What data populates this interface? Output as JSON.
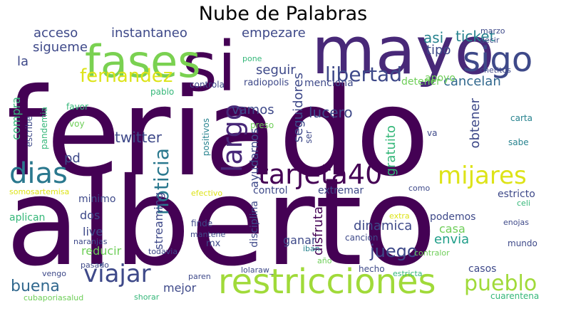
{
  "title": "Nube de Palabras",
  "palette": {
    "dark_purple": "#440154",
    "purple": "#482878",
    "indigo": "#3e4989",
    "blue": "#31688e",
    "teal": "#26828e",
    "green_teal": "#1f9e89",
    "green": "#35b779",
    "light_green": "#6ece58",
    "yellow_green": "#b5de2b",
    "yellow": "#dde318"
  },
  "words": [
    {
      "text": "feriado",
      "color": "#440154",
      "vertical": false
    },
    {
      "text": "alberto",
      "color": "#440154",
      "vertical": false
    },
    {
      "text": "mayo",
      "color": "#482878",
      "vertical": false
    },
    {
      "text": "si",
      "color": "#440154",
      "vertical": false
    },
    {
      "text": "fases",
      "color": "#7ad151",
      "vertical": false
    },
    {
      "text": "sigo",
      "color": "#3e4989",
      "vertical": false
    },
    {
      "text": "restricciones",
      "color": "#a0da39",
      "vertical": false
    },
    {
      "text": "tarjeta40",
      "color": "#440154",
      "vertical": false
    },
    {
      "text": "dias",
      "color": "#2a788e",
      "vertical": false
    },
    {
      "text": "viajar",
      "color": "#3e4989",
      "vertical": false
    },
    {
      "text": "mijares",
      "color": "#dde318",
      "vertical": false
    },
    {
      "text": "pueblo",
      "color": "#a0da39",
      "vertical": false
    },
    {
      "text": "largo",
      "color": "#482878",
      "vertical": true
    },
    {
      "text": "libertad",
      "color": "#3e4989",
      "vertical": false
    },
    {
      "text": "fernandez",
      "color": "#dde318",
      "vertical": false
    },
    {
      "text": "noticia",
      "color": "#2a788e",
      "vertical": true
    },
    {
      "text": "juego",
      "color": "#3e4989",
      "vertical": false
    },
    {
      "text": "buena",
      "color": "#31688e",
      "vertical": false
    },
    {
      "text": "acceso",
      "color": "#3e4989",
      "vertical": false
    },
    {
      "text": "instantaneo",
      "color": "#3e4989",
      "vertical": false
    },
    {
      "text": "sigueme",
      "color": "#3e4989",
      "vertical": false
    },
    {
      "text": "la",
      "color": "#3e4989",
      "vertical": false
    },
    {
      "text": "asi",
      "color": "#26828e",
      "vertical": false
    },
    {
      "text": "ticket",
      "color": "#26828e",
      "vertical": false
    },
    {
      "text": "tipo",
      "color": "#3e4989",
      "vertical": false
    },
    {
      "text": "empezare",
      "color": "#3e4989",
      "vertical": false
    },
    {
      "text": "seguir",
      "color": "#3e4989",
      "vertical": false
    },
    {
      "text": "cancelan",
      "color": "#31688e",
      "vertical": false
    },
    {
      "text": "twitter",
      "color": "#3e4989",
      "vertical": false
    },
    {
      "text": "vamos",
      "color": "#3e4989",
      "vertical": false
    },
    {
      "text": "lucero",
      "color": "#3e4989",
      "vertical": false
    },
    {
      "text": "seguidores",
      "color": "#3e4989",
      "vertical": true
    },
    {
      "text": "gratuito",
      "color": "#35b779",
      "vertical": true
    },
    {
      "text": "obtener",
      "color": "#3e4989",
      "vertical": true
    },
    {
      "text": "compra",
      "color": "#35b779",
      "vertical": true
    },
    {
      "text": "pd",
      "color": "#3e4989",
      "vertical": false
    },
    {
      "text": "dinamica",
      "color": "#3e4989",
      "vertical": false
    },
    {
      "text": "casa",
      "color": "#6ece58",
      "vertical": false
    },
    {
      "text": "envia",
      "color": "#1f9e89",
      "vertical": false
    },
    {
      "text": "streaming",
      "color": "#3e4989",
      "vertical": true
    },
    {
      "text": "ayudarnos",
      "color": "#3e4989",
      "vertical": true
    },
    {
      "text": "disfruta",
      "color": "#440154",
      "vertical": true
    },
    {
      "text": "disciplina",
      "color": "#3e4989",
      "vertical": true
    },
    {
      "text": "minimo",
      "color": "#3e4989",
      "vertical": false
    },
    {
      "text": "dos",
      "color": "#3e4989",
      "vertical": false
    },
    {
      "text": "live",
      "color": "#3e4989",
      "vertical": false
    },
    {
      "text": "reducir",
      "color": "#6ece58",
      "vertical": false
    },
    {
      "text": "aplican",
      "color": "#35b779",
      "vertical": false
    },
    {
      "text": "mejor",
      "color": "#3e4989",
      "vertical": false
    },
    {
      "text": "ganar",
      "color": "#3e4989",
      "vertical": false
    },
    {
      "text": "control",
      "color": "#3e4989",
      "vertical": false
    },
    {
      "text": "extremar",
      "color": "#3e4989",
      "vertical": false
    },
    {
      "text": "podemos",
      "color": "#3e4989",
      "vertical": false
    },
    {
      "text": "cancion",
      "color": "#3e4989",
      "vertical": false
    },
    {
      "text": "casos",
      "color": "#3e4989",
      "vertical": false
    },
    {
      "text": "cuarentena",
      "color": "#35b779",
      "vertical": false
    },
    {
      "text": "estricto",
      "color": "#3e4989",
      "vertical": false
    },
    {
      "text": "menciona",
      "color": "#3e4989",
      "vertical": false
    },
    {
      "text": "detener",
      "color": "#6ece58",
      "vertical": false
    },
    {
      "text": "apoyo",
      "color": "#6ece58",
      "vertical": false
    },
    {
      "text": "radiopolis",
      "color": "#3e4989",
      "vertical": false
    },
    {
      "text": "controla",
      "color": "#3e4989",
      "vertical": false
    },
    {
      "text": "pablo",
      "color": "#35b779",
      "vertical": false
    },
    {
      "text": "favor",
      "color": "#35b779",
      "vertical": false
    },
    {
      "text": "escribe",
      "color": "#3e4989",
      "vertical": true
    },
    {
      "text": "pandemia",
      "color": "#35b779",
      "vertical": true
    },
    {
      "text": "voy",
      "color": "#6ece58",
      "vertical": false
    },
    {
      "text": "positivos",
      "color": "#26828e",
      "vertical": true
    },
    {
      "text": "preso",
      "color": "#6ece58",
      "vertical": false
    },
    {
      "text": "ser",
      "color": "#3e4989",
      "vertical": true
    },
    {
      "text": "somosartemisa",
      "color": "#dde318",
      "vertical": false
    },
    {
      "text": "efectivo",
      "color": "#dde318",
      "vertical": false
    },
    {
      "text": "marzo",
      "color": "#3e4989",
      "vertical": false
    },
    {
      "text": "decir",
      "color": "#3e4989",
      "vertical": false
    },
    {
      "text": "chetitos",
      "color": "#3e4989",
      "vertical": false
    },
    {
      "text": "pone",
      "color": "#35b779",
      "vertical": false
    },
    {
      "text": "carta",
      "color": "#26828e",
      "vertical": false
    },
    {
      "text": "va",
      "color": "#3e4989",
      "vertical": false
    },
    {
      "text": "sabe",
      "color": "#26828e",
      "vertical": false
    },
    {
      "text": "como",
      "color": "#3e4989",
      "vertical": false
    },
    {
      "text": "celi",
      "color": "#35b779",
      "vertical": false
    },
    {
      "text": "enojas",
      "color": "#3e4989",
      "vertical": false
    },
    {
      "text": "extra",
      "color": "#dde318",
      "vertical": false
    },
    {
      "text": "mundo",
      "color": "#3e4989",
      "vertical": false
    },
    {
      "text": "contralor",
      "color": "#6ece58",
      "vertical": false
    },
    {
      "text": "estricta",
      "color": "#35b779",
      "vertical": false
    },
    {
      "text": "hecho",
      "color": "#3e4989",
      "vertical": false
    },
    {
      "text": "iban",
      "color": "#26828e",
      "vertical": false
    },
    {
      "text": "año",
      "color": "#6ece58",
      "vertical": false
    },
    {
      "text": "finde",
      "color": "#3e4989",
      "vertical": false
    },
    {
      "text": "mantene",
      "color": "#3e4989",
      "vertical": false
    },
    {
      "text": "mx",
      "color": "#3e4989",
      "vertical": false
    },
    {
      "text": "naranjas",
      "color": "#3e4989",
      "vertical": false
    },
    {
      "text": "pasado",
      "color": "#3e4989",
      "vertical": false
    },
    {
      "text": "todavia",
      "color": "#3e4989",
      "vertical": false
    },
    {
      "text": "vengo",
      "color": "#3e4989",
      "vertical": false
    },
    {
      "text": "paren",
      "color": "#3e4989",
      "vertical": false
    },
    {
      "text": "lolaraw_",
      "color": "#3e4989",
      "vertical": false
    },
    {
      "text": "shorar",
      "color": "#35b779",
      "vertical": false
    },
    {
      "text": "cubaporiasalud",
      "color": "#6ece58",
      "vertical": false
    }
  ]
}
